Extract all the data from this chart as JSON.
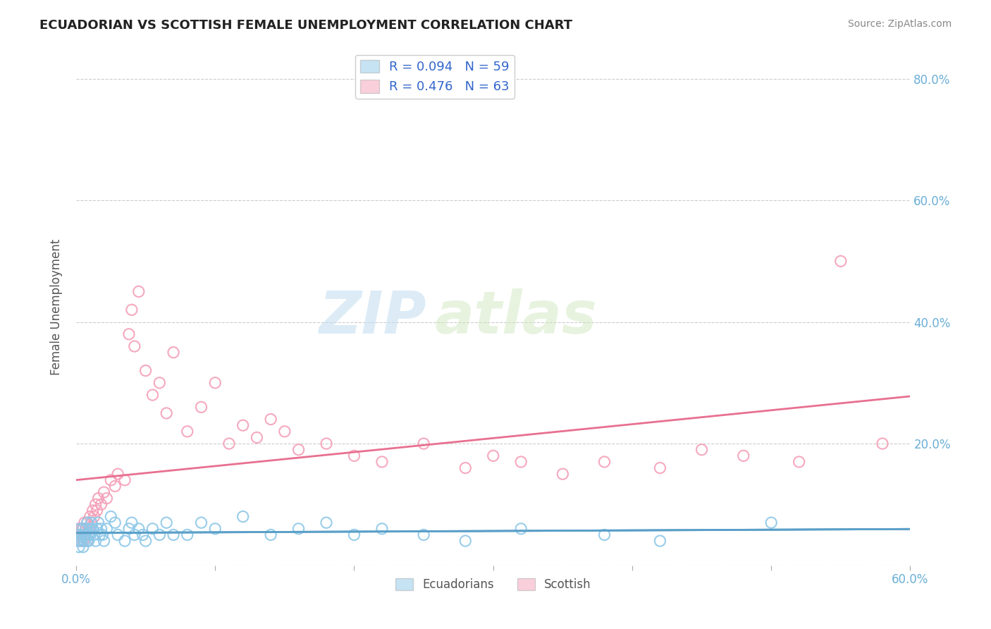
{
  "title": "ECUADORIAN VS SCOTTISH FEMALE UNEMPLOYMENT CORRELATION CHART",
  "source": "Source: ZipAtlas.com",
  "ylabel": "Female Unemployment",
  "watermark_zip": "ZIP",
  "watermark_atlas": "atlas",
  "legend_r1": "R = 0.094",
  "legend_n1": "N = 59",
  "legend_r2": "R = 0.476",
  "legend_n2": "N = 63",
  "blue_color": "#8ec8e8",
  "pink_color": "#f4a0b8",
  "blue_line_color": "#5a9fc8",
  "pink_line_color": "#e87090",
  "title_color": "#222222",
  "source_color": "#888888",
  "axis_label_color": "#6baed6",
  "legend_text_color": "#3366cc",
  "xlim": [
    0.0,
    0.6
  ],
  "ylim": [
    0.0,
    0.85
  ],
  "yticks": [
    0.0,
    0.2,
    0.4,
    0.6,
    0.8
  ],
  "ytick_labels": [
    "",
    "20.0%",
    "40.0%",
    "60.0%",
    "80.0%"
  ],
  "ecuadorian_x": [
    0.001,
    0.002,
    0.002,
    0.003,
    0.003,
    0.004,
    0.004,
    0.005,
    0.005,
    0.006,
    0.006,
    0.007,
    0.007,
    0.008,
    0.008,
    0.009,
    0.009,
    0.01,
    0.01,
    0.011,
    0.012,
    0.013,
    0.014,
    0.015,
    0.016,
    0.017,
    0.018,
    0.019,
    0.02,
    0.022,
    0.025,
    0.028,
    0.03,
    0.035,
    0.038,
    0.04,
    0.042,
    0.045,
    0.048,
    0.05,
    0.055,
    0.06,
    0.065,
    0.07,
    0.08,
    0.09,
    0.1,
    0.12,
    0.14,
    0.16,
    0.18,
    0.2,
    0.22,
    0.25,
    0.28,
    0.32,
    0.38,
    0.42,
    0.5
  ],
  "ecuadorian_y": [
    0.04,
    0.05,
    0.03,
    0.06,
    0.04,
    0.05,
    0.04,
    0.03,
    0.06,
    0.05,
    0.04,
    0.06,
    0.05,
    0.04,
    0.07,
    0.05,
    0.04,
    0.06,
    0.05,
    0.07,
    0.06,
    0.05,
    0.04,
    0.06,
    0.07,
    0.05,
    0.06,
    0.05,
    0.04,
    0.06,
    0.08,
    0.07,
    0.05,
    0.04,
    0.06,
    0.07,
    0.05,
    0.06,
    0.05,
    0.04,
    0.06,
    0.05,
    0.07,
    0.05,
    0.05,
    0.07,
    0.06,
    0.08,
    0.05,
    0.06,
    0.07,
    0.05,
    0.06,
    0.05,
    0.04,
    0.06,
    0.05,
    0.04,
    0.07
  ],
  "scottish_x": [
    0.001,
    0.002,
    0.002,
    0.003,
    0.003,
    0.004,
    0.004,
    0.005,
    0.005,
    0.006,
    0.006,
    0.007,
    0.007,
    0.008,
    0.008,
    0.009,
    0.01,
    0.011,
    0.012,
    0.013,
    0.014,
    0.015,
    0.016,
    0.018,
    0.02,
    0.022,
    0.025,
    0.028,
    0.03,
    0.035,
    0.038,
    0.04,
    0.042,
    0.045,
    0.05,
    0.055,
    0.06,
    0.065,
    0.07,
    0.08,
    0.09,
    0.1,
    0.11,
    0.12,
    0.13,
    0.14,
    0.15,
    0.16,
    0.18,
    0.2,
    0.22,
    0.25,
    0.28,
    0.3,
    0.32,
    0.35,
    0.38,
    0.42,
    0.45,
    0.48,
    0.52,
    0.55,
    0.58
  ],
  "scottish_y": [
    0.05,
    0.04,
    0.06,
    0.05,
    0.04,
    0.06,
    0.05,
    0.04,
    0.06,
    0.05,
    0.07,
    0.06,
    0.05,
    0.04,
    0.07,
    0.06,
    0.08,
    0.07,
    0.09,
    0.08,
    0.1,
    0.09,
    0.11,
    0.1,
    0.12,
    0.11,
    0.14,
    0.13,
    0.15,
    0.14,
    0.38,
    0.42,
    0.36,
    0.45,
    0.32,
    0.28,
    0.3,
    0.25,
    0.35,
    0.22,
    0.26,
    0.3,
    0.2,
    0.23,
    0.21,
    0.24,
    0.22,
    0.19,
    0.2,
    0.18,
    0.17,
    0.2,
    0.16,
    0.18,
    0.17,
    0.15,
    0.17,
    0.16,
    0.19,
    0.18,
    0.17,
    0.5,
    0.2
  ]
}
